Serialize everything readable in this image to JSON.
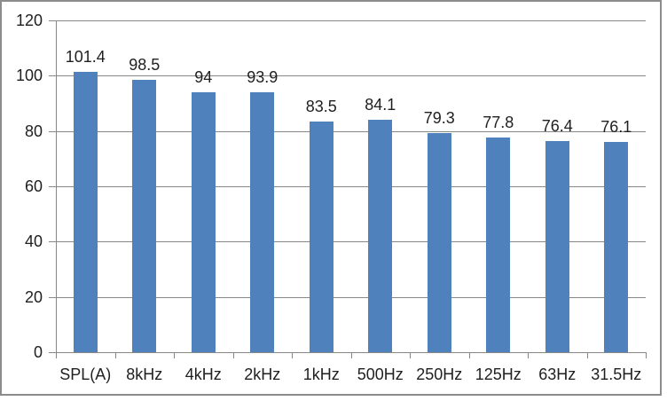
{
  "chart_data": {
    "type": "bar",
    "title": "",
    "xlabel": "",
    "ylabel": "",
    "categories": [
      "SPL(A)",
      "8kHz",
      "4kHz",
      "2kHz",
      "1kHz",
      "500Hz",
      "250Hz",
      "125Hz",
      "63Hz",
      "31.5Hz"
    ],
    "values": [
      101.4,
      98.5,
      94,
      93.9,
      83.5,
      84.1,
      79.3,
      77.8,
      76.4,
      76.1
    ],
    "value_labels": [
      "101.4",
      "98.5",
      "94",
      "93.9",
      "83.5",
      "84.1",
      "79.3",
      "77.8",
      "76.4",
      "76.1"
    ],
    "ylim": [
      0,
      120
    ],
    "ytick_step": 20,
    "ytick_labels": [
      "0",
      "20",
      "40",
      "60",
      "80",
      "100",
      "120"
    ],
    "grid": true,
    "legend": false,
    "colors": {
      "bar": "#4f81bd",
      "gridline": "#878787",
      "axis": "#878787",
      "frame_border": "#8c8c8c",
      "text": "#1f1f1f",
      "background": "#ffffff"
    }
  }
}
